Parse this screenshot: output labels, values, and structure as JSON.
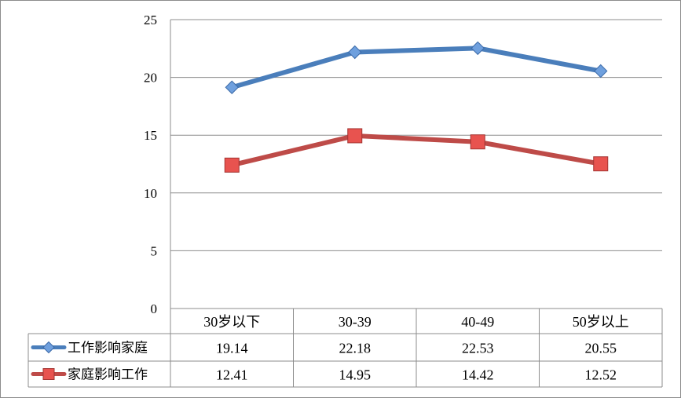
{
  "chart_data": {
    "type": "line",
    "categories": [
      "30岁以下",
      "30-39",
      "40-49",
      "50岁以上"
    ],
    "series": [
      {
        "name": "工作影响家庭",
        "values": [
          19.14,
          22.18,
          22.53,
          20.55
        ],
        "color": "#4a7ebb",
        "marker": "diamond"
      },
      {
        "name": "家庭影响工作",
        "values": [
          12.41,
          14.95,
          14.42,
          12.52
        ],
        "color": "#be4b48",
        "marker": "square"
      }
    ],
    "value_labels": [
      [
        "19.14",
        "22.18",
        "22.53",
        "20.55"
      ],
      [
        "12.41",
        "14.95",
        "14.42",
        "12.52"
      ]
    ],
    "y_ticks": [
      "0",
      "5",
      "10",
      "15",
      "20",
      "25"
    ],
    "ylim": [
      0,
      25
    ],
    "grid": true,
    "legend": "data-table-left",
    "title": "",
    "xlabel": "",
    "ylabel": ""
  }
}
